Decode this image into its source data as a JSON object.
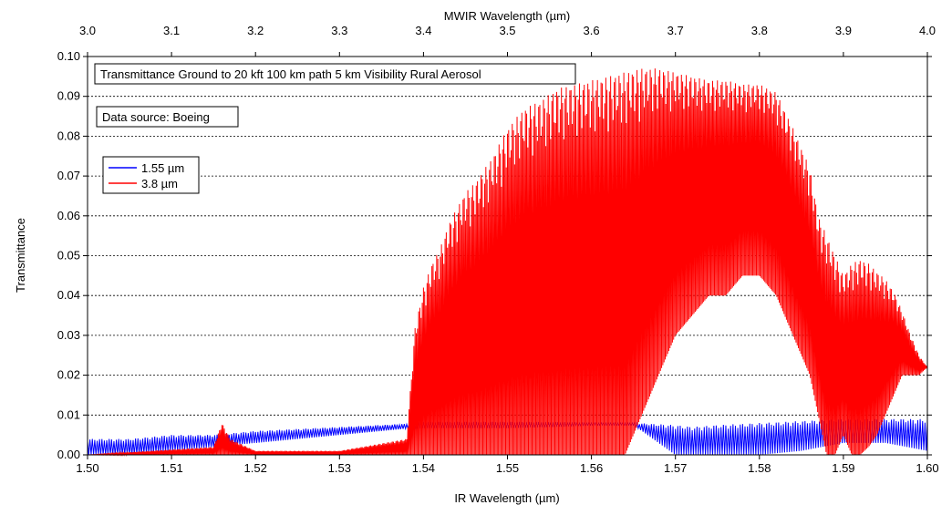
{
  "chart_data": {
    "type": "line",
    "title": "Transmittance Ground to 20 kft 100 km path 5 km Visibility Rural Aerosol",
    "subtitle": "Data source: Boeing",
    "xlabel": "IR Wavelength (µm)",
    "x2label": "MWIR Wavelength (µm)",
    "ylabel": "Transmittance",
    "xlim": [
      1.5,
      1.6
    ],
    "x2lim": [
      3.0,
      4.0
    ],
    "ylim": [
      0.0,
      0.1
    ],
    "grid": "horizontal dashed",
    "legend_position": "top-left",
    "x_ticks": [
      "1.50",
      "1.51",
      "1.52",
      "1.53",
      "1.54",
      "1.55",
      "1.56",
      "1.57",
      "1.58",
      "1.59",
      "1.60"
    ],
    "x2_ticks": [
      "3.0",
      "3.1",
      "3.2",
      "3.3",
      "3.4",
      "3.5",
      "3.6",
      "3.7",
      "3.8",
      "3.9",
      "4.0"
    ],
    "y_ticks": [
      "0.00",
      "0.01",
      "0.02",
      "0.03",
      "0.04",
      "0.05",
      "0.06",
      "0.07",
      "0.08",
      "0.09",
      "0.10"
    ],
    "series": [
      {
        "name": "1.55 µm",
        "axis": "bottom",
        "color": "#0000ff",
        "x": [
          1.5,
          1.505,
          1.51,
          1.515,
          1.52,
          1.525,
          1.53,
          1.535,
          1.54,
          1.545,
          1.55,
          1.555,
          1.56,
          1.565,
          1.57,
          1.572,
          1.575,
          1.58,
          1.585,
          1.59,
          1.595,
          1.6
        ],
        "upper": [
          0.004,
          0.004,
          0.005,
          0.005,
          0.006,
          0.0065,
          0.007,
          0.0075,
          0.008,
          0.008,
          0.008,
          0.008,
          0.008,
          0.008,
          0.0075,
          0.007,
          0.0075,
          0.008,
          0.0085,
          0.009,
          0.009,
          0.009
        ],
        "lower": [
          0.0,
          0.0,
          0.001,
          0.002,
          0.003,
          0.004,
          0.005,
          0.006,
          0.007,
          0.007,
          0.007,
          0.0072,
          0.0075,
          0.0075,
          0.0,
          0.0,
          0.0,
          0.0,
          0.001,
          0.003,
          0.003,
          0.001
        ]
      },
      {
        "name": "3.8 µm",
        "axis": "top",
        "color": "#ff0000",
        "x": [
          3.0,
          3.15,
          3.16,
          3.17,
          3.2,
          3.3,
          3.38,
          3.39,
          3.4,
          3.41,
          3.42,
          3.43,
          3.44,
          3.45,
          3.46,
          3.48,
          3.5,
          3.52,
          3.54,
          3.56,
          3.58,
          3.6,
          3.62,
          3.64,
          3.66,
          3.68,
          3.7,
          3.72,
          3.74,
          3.76,
          3.78,
          3.8,
          3.82,
          3.84,
          3.86,
          3.87,
          3.88,
          3.89,
          3.9,
          3.91,
          3.92,
          3.93,
          3.94,
          3.95,
          3.96,
          3.97,
          3.98,
          3.99,
          4.0
        ],
        "upper": [
          0.0,
          0.002,
          0.008,
          0.004,
          0.001,
          0.001,
          0.004,
          0.032,
          0.042,
          0.048,
          0.052,
          0.058,
          0.062,
          0.066,
          0.068,
          0.074,
          0.082,
          0.087,
          0.089,
          0.092,
          0.093,
          0.094,
          0.095,
          0.096,
          0.097,
          0.097,
          0.096,
          0.095,
          0.094,
          0.094,
          0.093,
          0.093,
          0.091,
          0.082,
          0.072,
          0.06,
          0.055,
          0.05,
          0.045,
          0.048,
          0.049,
          0.048,
          0.046,
          0.044,
          0.041,
          0.036,
          0.03,
          0.025,
          0.022
        ],
        "lower": [
          0.0,
          0.0,
          0.0,
          0.0,
          0.0,
          0.0,
          0.0,
          0.0,
          0.0,
          0.0,
          0.0,
          0.0,
          0.0,
          0.0,
          0.0,
          0.0,
          0.0,
          0.0,
          0.0,
          0.0,
          0.0,
          0.0,
          0.0,
          0.0,
          0.01,
          0.02,
          0.03,
          0.035,
          0.04,
          0.04,
          0.045,
          0.045,
          0.04,
          0.03,
          0.02,
          0.01,
          0.0,
          0.0,
          0.005,
          0.0,
          0.0,
          0.002,
          0.005,
          0.01,
          0.015,
          0.02,
          0.02,
          0.02,
          0.022
        ]
      }
    ]
  }
}
